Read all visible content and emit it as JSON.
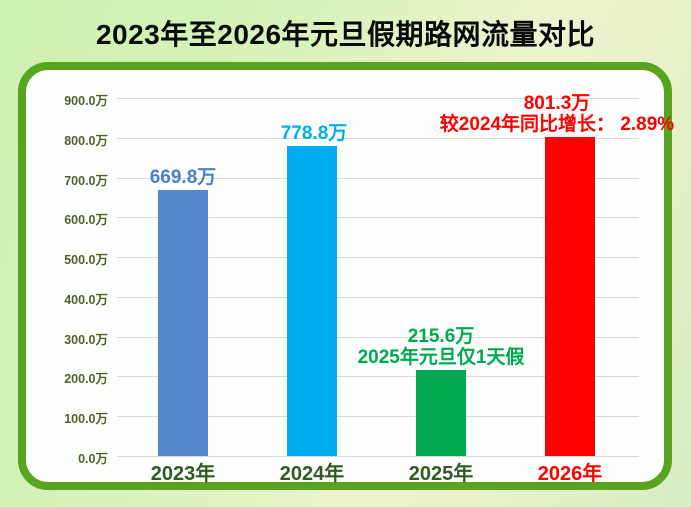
{
  "page": {
    "card_border_color": "#58A41C",
    "card_background": "#FDFFFD",
    "background_green": "#CCF1B0",
    "background_yellow_green": "#ECF3CE"
  },
  "chart_data": {
    "type": "bar",
    "title": "2023年至2026年元旦假期路网流量对比",
    "title_color": "#0A0A0A",
    "categories": [
      "2023年",
      "2024年",
      "2025年",
      "2026年"
    ],
    "values": [
      669.8,
      778.8,
      215.6,
      801.3
    ],
    "unit": "万",
    "value_labels": [
      "669.8万",
      "778.8万",
      "215.6万",
      "801.3万"
    ],
    "bar_colors": [
      "#5589CD",
      "#00AEEF",
      "#00A94F",
      "#FF0000"
    ],
    "value_label_colors": [
      "#4A7FC9",
      "#00AEEF",
      "#00A94F",
      "#FF0000"
    ],
    "category_label_colors": [
      "#2F5B22",
      "#2F5B22",
      "#2F5B22",
      "#FF0000"
    ],
    "annotations": [
      "",
      "",
      "2025年元旦仅1天假",
      "较2024年同比增长： 2.89%"
    ],
    "annotation_colors": [
      "",
      "",
      "#00A94F",
      "#FF0000"
    ],
    "xlabel": "",
    "ylabel": "",
    "ylim": [
      0,
      900
    ],
    "ytick_step": 100,
    "ytick_labels": [
      "0.0万",
      "100.0万",
      "200.0万",
      "300.0万",
      "400.0万",
      "500.0万",
      "600.0万",
      "700.0万",
      "800.0万",
      "900.0万"
    ],
    "ytick_color": "#4F6228",
    "grid": true,
    "gridline_color": "#D9D9D9",
    "legend_position": "none"
  }
}
